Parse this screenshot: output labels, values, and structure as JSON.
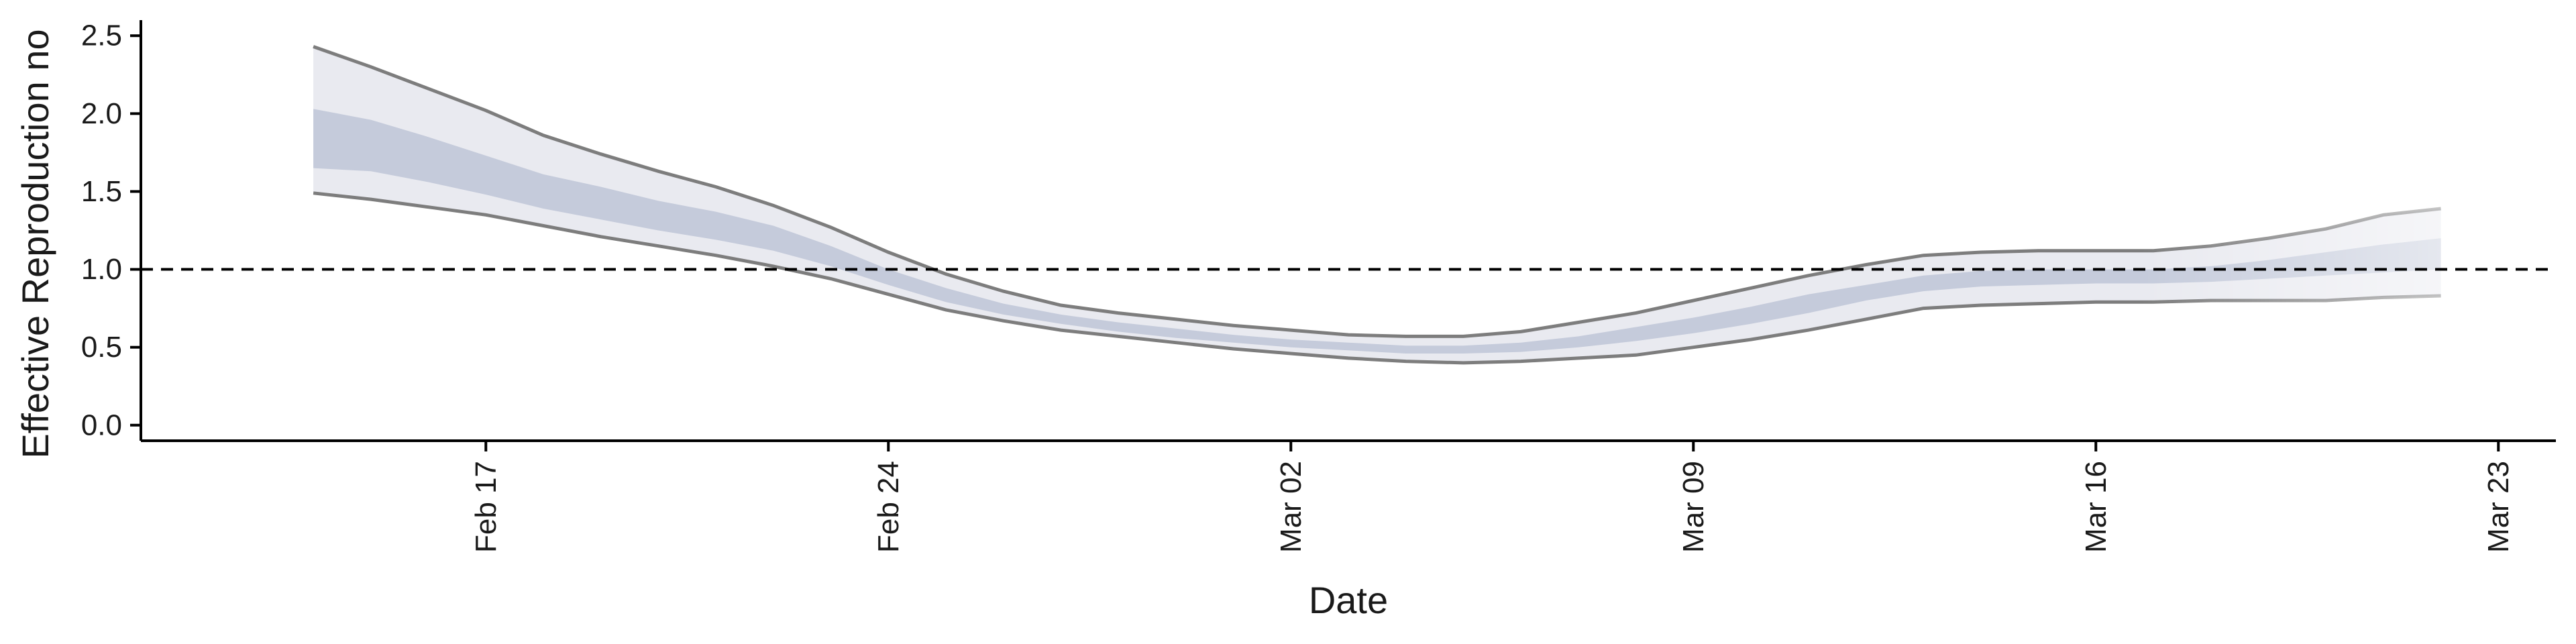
{
  "chart_data": {
    "type": "area",
    "xlabel": "Date",
    "ylabel": "Effective Reproduction no",
    "x_ticks": [
      {
        "date": "2020-02-17",
        "label": "Feb 17"
      },
      {
        "date": "2020-02-24",
        "label": "Feb 24"
      },
      {
        "date": "2020-03-02",
        "label": "Mar 02"
      },
      {
        "date": "2020-03-09",
        "label": "Mar 09"
      },
      {
        "date": "2020-03-16",
        "label": "Mar 16"
      },
      {
        "date": "2020-03-23",
        "label": "Mar 23"
      }
    ],
    "y_ticks": [
      "0.0",
      "0.5",
      "1.0",
      "1.5",
      "2.0",
      "2.5"
    ],
    "xlim": [
      "2020-02-11",
      "2020-03-24"
    ],
    "ylim": [
      -0.1,
      2.6
    ],
    "reference_line": 1.0,
    "grid": false,
    "colors": {
      "outer_band": "#e9eaf0",
      "inner_band": "#c5cbdb",
      "outer_edge": "#7d7d7d",
      "reference": "#000000"
    },
    "dates": [
      "2020-02-14",
      "2020-02-15",
      "2020-02-16",
      "2020-02-17",
      "2020-02-18",
      "2020-02-19",
      "2020-02-20",
      "2020-02-21",
      "2020-02-22",
      "2020-02-23",
      "2020-02-24",
      "2020-02-25",
      "2020-02-26",
      "2020-02-27",
      "2020-02-28",
      "2020-02-29",
      "2020-03-01",
      "2020-03-02",
      "2020-03-03",
      "2020-03-04",
      "2020-03-05",
      "2020-03-06",
      "2020-03-07",
      "2020-03-08",
      "2020-03-09",
      "2020-03-10",
      "2020-03-11",
      "2020-03-12",
      "2020-03-13",
      "2020-03-14",
      "2020-03-15",
      "2020-03-16",
      "2020-03-17",
      "2020-03-18",
      "2020-03-19",
      "2020-03-20",
      "2020-03-21",
      "2020-03-22"
    ],
    "ci95_upper": [
      2.43,
      2.3,
      2.16,
      2.02,
      1.86,
      1.74,
      1.63,
      1.53,
      1.41,
      1.27,
      1.11,
      0.97,
      0.86,
      0.77,
      0.72,
      0.68,
      0.64,
      0.61,
      0.58,
      0.57,
      0.57,
      0.6,
      0.66,
      0.72,
      0.8,
      0.88,
      0.96,
      1.03,
      1.09,
      1.11,
      1.12,
      1.12,
      1.12,
      1.15,
      1.2,
      1.26,
      1.35,
      1.39
    ],
    "ci50_upper": [
      2.03,
      1.96,
      1.85,
      1.73,
      1.61,
      1.53,
      1.44,
      1.37,
      1.28,
      1.15,
      1.0,
      0.88,
      0.78,
      0.71,
      0.66,
      0.62,
      0.58,
      0.55,
      0.53,
      0.51,
      0.51,
      0.53,
      0.57,
      0.63,
      0.69,
      0.76,
      0.84,
      0.9,
      0.96,
      0.99,
      1.0,
      1.0,
      1.0,
      1.02,
      1.06,
      1.11,
      1.16,
      1.2
    ],
    "ci50_lower": [
      1.65,
      1.63,
      1.56,
      1.48,
      1.39,
      1.32,
      1.25,
      1.19,
      1.12,
      1.02,
      0.9,
      0.79,
      0.71,
      0.65,
      0.6,
      0.56,
      0.53,
      0.5,
      0.48,
      0.46,
      0.46,
      0.47,
      0.5,
      0.54,
      0.59,
      0.65,
      0.72,
      0.8,
      0.86,
      0.89,
      0.9,
      0.91,
      0.91,
      0.92,
      0.94,
      0.96,
      0.98,
      1.0
    ],
    "ci95_lower": [
      1.49,
      1.45,
      1.4,
      1.35,
      1.28,
      1.21,
      1.15,
      1.09,
      1.02,
      0.94,
      0.84,
      0.74,
      0.67,
      0.61,
      0.57,
      0.53,
      0.49,
      0.46,
      0.43,
      0.41,
      0.4,
      0.41,
      0.43,
      0.45,
      0.5,
      0.55,
      0.61,
      0.68,
      0.75,
      0.77,
      0.78,
      0.79,
      0.79,
      0.8,
      0.8,
      0.8,
      0.82,
      0.83
    ]
  }
}
